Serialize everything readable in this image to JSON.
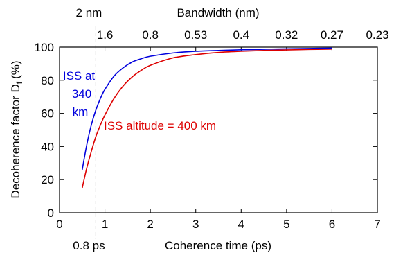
{
  "chart_data": {
    "type": "line",
    "xlabel": "Coherence time (ps)",
    "ylabel_main": "Decoherence  factor D",
    "ylabel_sub": "f",
    "ylabel_unit": "(%)",
    "top_axis_title": "Bandwidth (nm)",
    "xlim": [
      0,
      7
    ],
    "ylim": [
      0,
      100
    ],
    "x_ticks": [
      0,
      1,
      2,
      3,
      4,
      5,
      6,
      7
    ],
    "y_ticks": [
      0,
      20,
      40,
      60,
      80,
      100
    ],
    "top_ticks": [
      {
        "t": 1,
        "label": "1.6"
      },
      {
        "t": 2,
        "label": "0.8"
      },
      {
        "t": 3,
        "label": "0.53"
      },
      {
        "t": 4,
        "label": "0.4"
      },
      {
        "t": 5,
        "label": "0.32"
      },
      {
        "t": 6,
        "label": "0.27"
      },
      {
        "t": 7,
        "label": "0.23"
      }
    ],
    "marker_line": {
      "x": 0.8,
      "bottom_label": "0.8 ps",
      "top_label": "2 nm"
    },
    "series": [
      {
        "color": "#0000dd",
        "x": [
          0.5,
          0.6,
          0.7,
          0.8,
          0.9,
          1.0,
          1.2,
          1.4,
          1.6,
          1.8,
          2.0,
          2.5,
          3.0,
          3.5,
          4.0,
          4.5,
          5.0,
          5.5,
          6.0
        ],
        "y": [
          26,
          41,
          53,
          62,
          69,
          74.5,
          82.5,
          87.5,
          91,
          93,
          94.5,
          96.5,
          97.5,
          98,
          98.4,
          98.7,
          99,
          99.2,
          99.4
        ]
      },
      {
        "color": "#dd0000",
        "x": [
          0.5,
          0.6,
          0.7,
          0.8,
          0.9,
          1.0,
          1.2,
          1.4,
          1.6,
          1.8,
          2.0,
          2.5,
          3.0,
          3.5,
          4.0,
          4.5,
          5.0,
          5.5,
          6.0
        ],
        "y": [
          15,
          27,
          37,
          46,
          53,
          59,
          69,
          76.5,
          82,
          86,
          89,
          93.5,
          95.5,
          96.8,
          97.5,
          98,
          98.3,
          98.6,
          98.8
        ]
      }
    ],
    "annotations": [
      {
        "lines": [
          "ISS at",
          "340",
          "km"
        ],
        "color": "#0000dd"
      },
      {
        "lines": [
          "ISS altitude = 400 km"
        ],
        "color": "#dd0000"
      }
    ]
  }
}
